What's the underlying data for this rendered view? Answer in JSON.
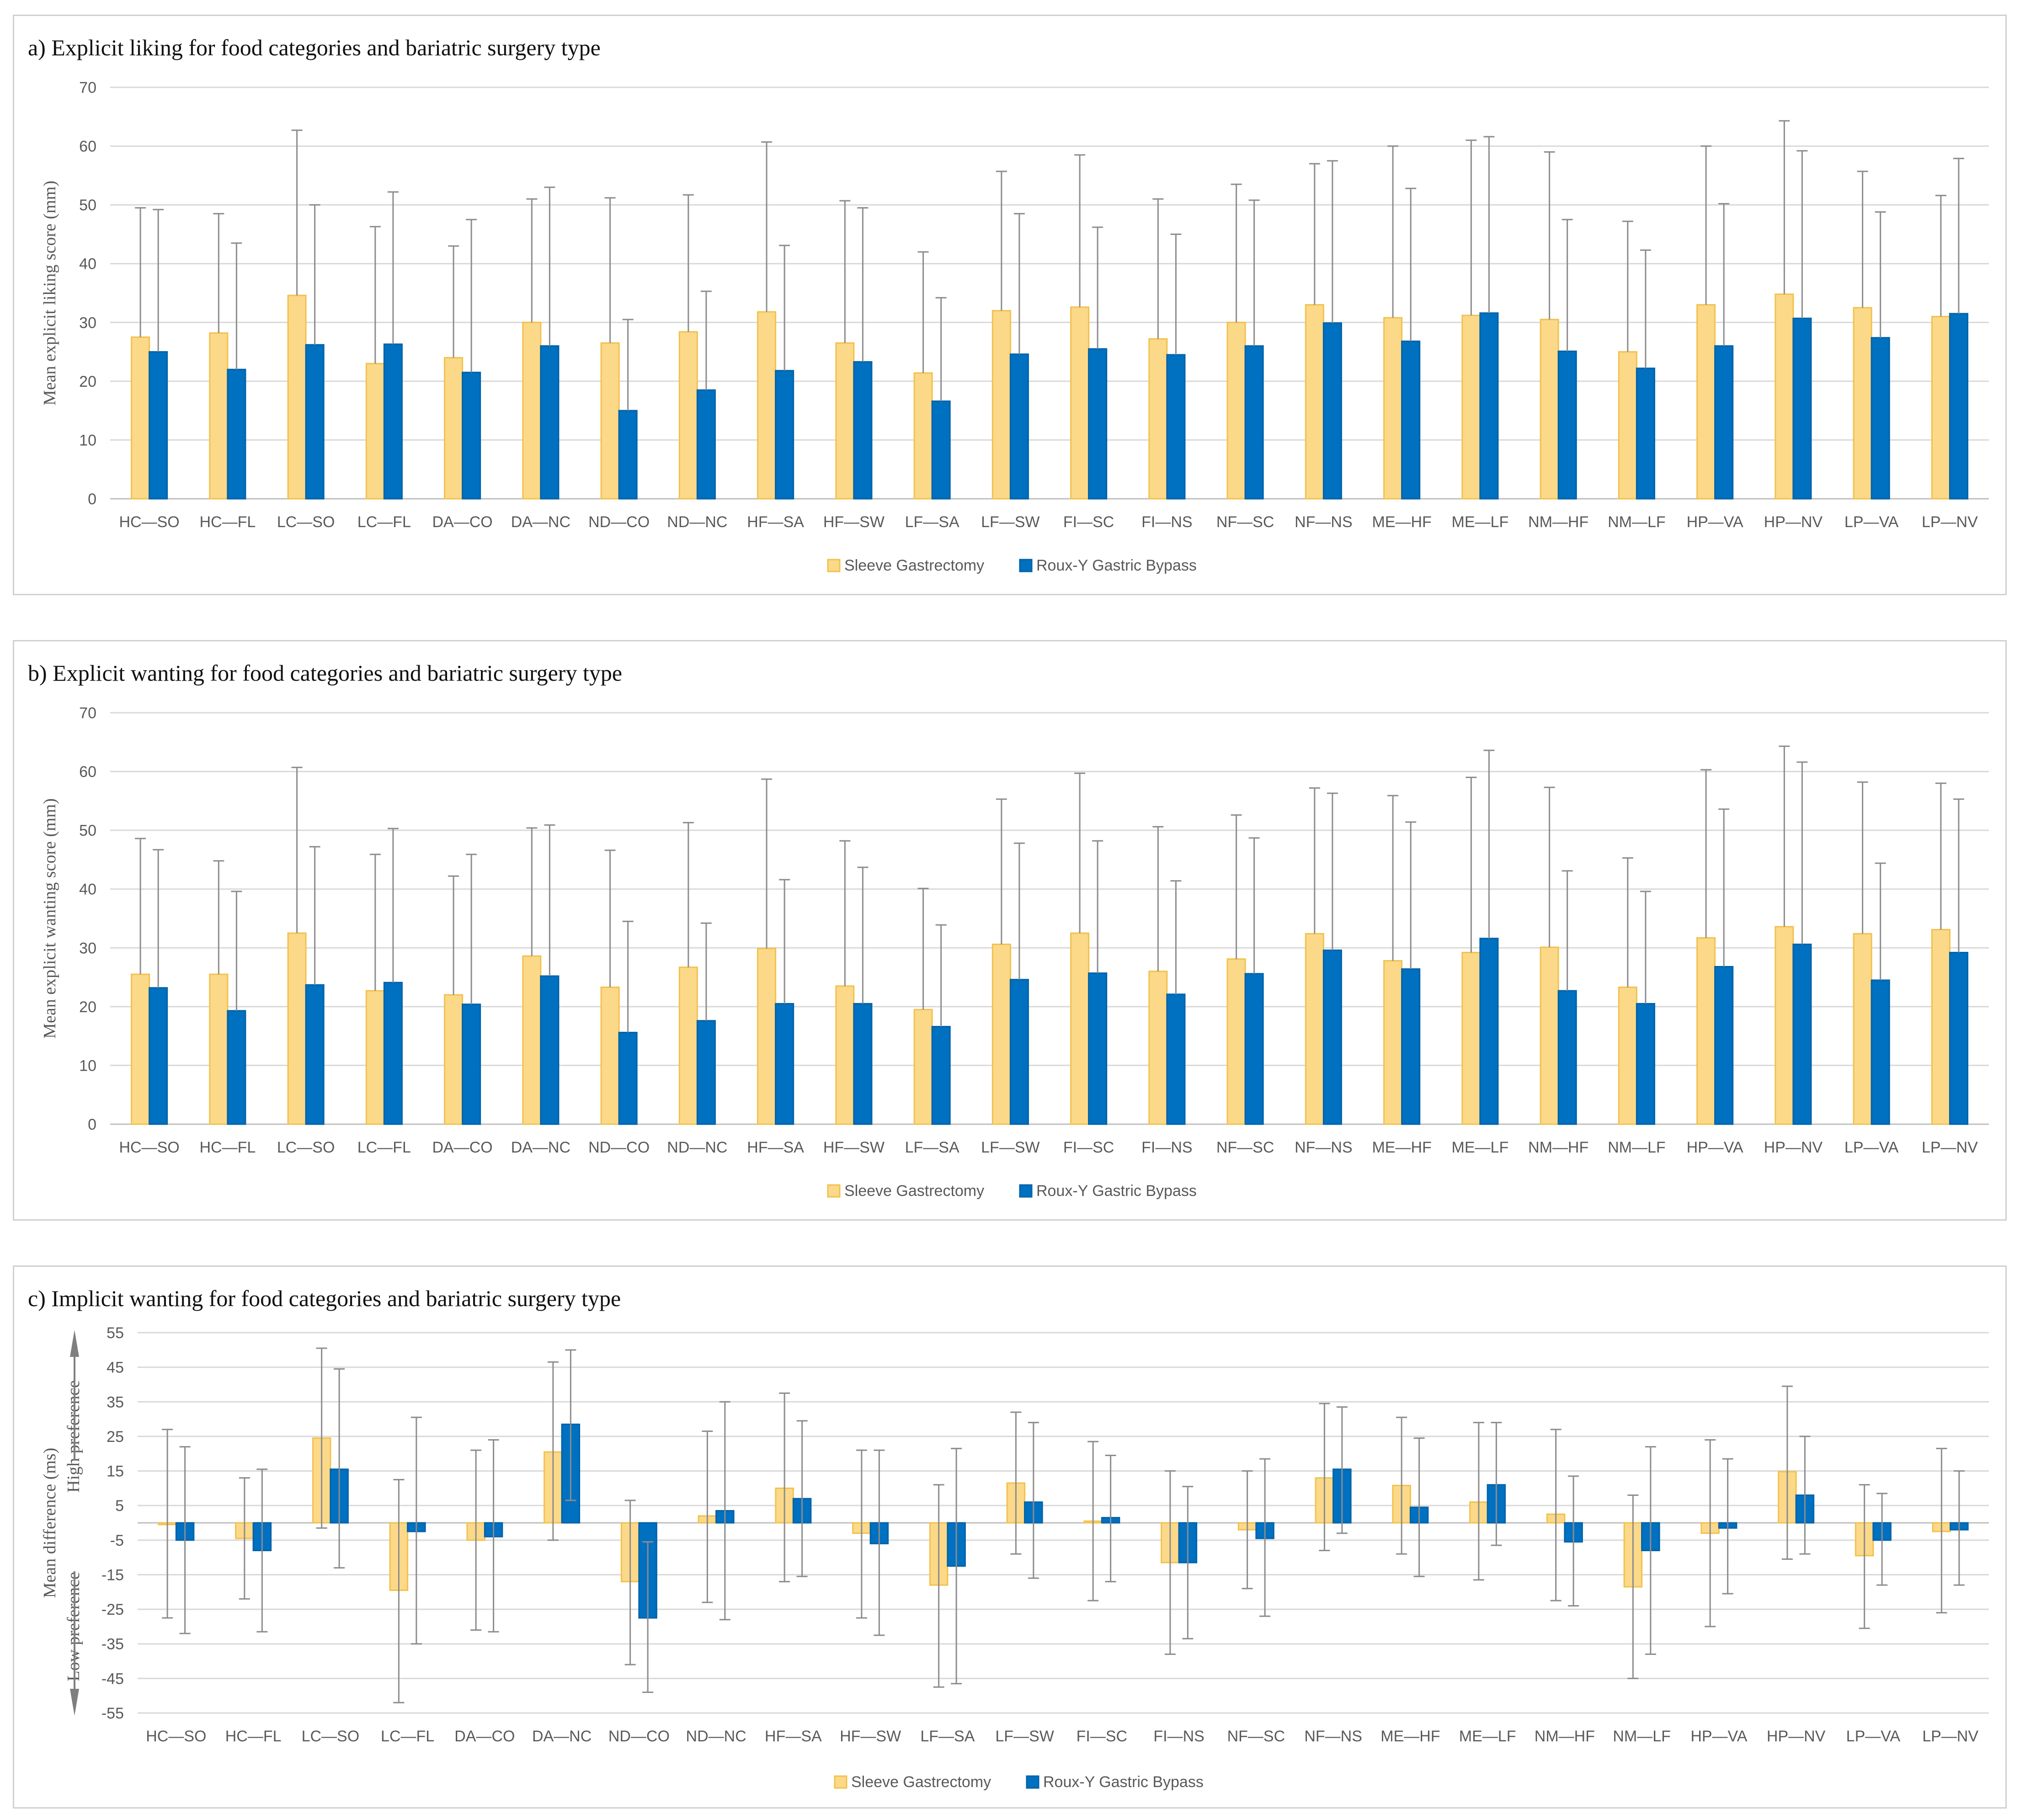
{
  "chart_data": [
    {
      "type": "bar",
      "title": "a) Explicit liking for food categories and bariatric surgery type",
      "xlabel": "",
      "ylabel": "Mean explicit liking score (mm)",
      "ylim": [
        0,
        70
      ],
      "yticks": [
        0,
        10,
        20,
        30,
        40,
        50,
        60,
        70
      ],
      "grid": true,
      "legend_position": "bottom",
      "categories": [
        "HC—SO",
        "HC—FL",
        "LC—SO",
        "LC—FL",
        "DA—CO",
        "DA—NC",
        "ND—CO",
        "ND—NC",
        "HF—SA",
        "HF—SW",
        "LF—SA",
        "LF—SW",
        "FI—SC",
        "FI—NS",
        "NF—SC",
        "NF—NS",
        "ME—HF",
        "ME—LF",
        "NM—HF",
        "NM—LF",
        "HP—VA",
        "HP—NV",
        "LP—VA",
        "LP—NV"
      ],
      "series": [
        {
          "name": "Sleeve Gastrectomy",
          "color": "#fbd989",
          "edge": "#f2c14e",
          "values": [
            27.5,
            28.2,
            34.6,
            23,
            24,
            30,
            26.5,
            28.4,
            31.8,
            26.5,
            21.4,
            32,
            32.6,
            27.2,
            30,
            33,
            30.8,
            31.2,
            30.5,
            25,
            33,
            34.8,
            32.5,
            31
          ],
          "err_top": [
            49.5,
            48.5,
            62.7,
            46.3,
            43,
            51,
            51.2,
            51.7,
            60.7,
            50.7,
            42,
            55.7,
            58.5,
            51,
            53.5,
            57,
            60,
            61,
            59,
            47.2,
            60,
            64.3,
            55.7,
            51.6
          ]
        },
        {
          "name": "Roux-Y Gastric Bypass",
          "color": "#0070c0",
          "edge": "#0062a8",
          "values": [
            25,
            22,
            26.2,
            26.3,
            21.5,
            26,
            15,
            18.5,
            21.8,
            23.3,
            16.6,
            24.6,
            25.5,
            24.5,
            26,
            29.9,
            26.8,
            31.6,
            25.1,
            22.2,
            26,
            30.7,
            27.4,
            31.5
          ],
          "err_top": [
            49.2,
            43.5,
            50,
            52.2,
            47.5,
            53,
            30.5,
            35.3,
            43.1,
            49.5,
            34.2,
            48.5,
            46.2,
            45,
            50.8,
            57.5,
            52.8,
            61.6,
            47.5,
            42.3,
            50.2,
            59.2,
            48.8,
            57.9
          ]
        }
      ]
    },
    {
      "type": "bar",
      "title": "b) Explicit wanting for food categories and bariatric surgery type",
      "xlabel": "",
      "ylabel": "Mean explicit wanting score (mm)",
      "ylim": [
        0,
        70
      ],
      "yticks": [
        0,
        10,
        20,
        30,
        40,
        50,
        60,
        70
      ],
      "grid": true,
      "legend_position": "bottom",
      "categories": [
        "HC—SO",
        "HC—FL",
        "LC—SO",
        "LC—FL",
        "DA—CO",
        "DA—NC",
        "ND—CO",
        "ND—NC",
        "HF—SA",
        "HF—SW",
        "LF—SA",
        "LF—SW",
        "FI—SC",
        "FI—NS",
        "NF—SC",
        "NF—NS",
        "ME—HF",
        "ME—LF",
        "NM—HF",
        "NM—LF",
        "HP—VA",
        "HP—NV",
        "LP—VA",
        "LP—NV"
      ],
      "series": [
        {
          "name": "Sleeve Gastrectomy",
          "color": "#fbd989",
          "edge": "#f2c14e",
          "values": [
            25.5,
            25.5,
            32.5,
            22.7,
            22,
            28.6,
            23.3,
            26.7,
            29.9,
            23.5,
            19.5,
            30.6,
            32.5,
            26,
            28.1,
            32.4,
            27.8,
            29.2,
            30.1,
            23.3,
            31.7,
            33.6,
            32.4,
            33.1
          ],
          "err_top": [
            48.6,
            44.8,
            60.7,
            45.9,
            42.2,
            50.4,
            46.6,
            51.3,
            58.7,
            48.2,
            40.1,
            55.3,
            59.7,
            50.6,
            52.6,
            57.2,
            55.9,
            59,
            57.3,
            45.3,
            60.3,
            64.3,
            58.2,
            58
          ]
        },
        {
          "name": "Roux-Y Gastric Bypass",
          "color": "#0070c0",
          "edge": "#0062a8",
          "values": [
            23.2,
            19.3,
            23.7,
            24.1,
            20.4,
            25.2,
            15.6,
            17.6,
            20.5,
            20.5,
            16.6,
            24.6,
            25.7,
            22.1,
            25.6,
            29.6,
            26.4,
            31.6,
            22.7,
            20.5,
            26.8,
            30.6,
            24.5,
            29.2
          ],
          "err_top": [
            46.7,
            39.6,
            47.2,
            50.3,
            45.9,
            50.9,
            34.5,
            34.2,
            41.6,
            43.7,
            33.9,
            47.8,
            48.2,
            41.4,
            48.7,
            56.3,
            51.4,
            63.6,
            43.1,
            39.6,
            53.6,
            61.6,
            44.4,
            55.3
          ]
        }
      ]
    },
    {
      "type": "bar",
      "title": "c) Implicit wanting for food categories and bariatric surgery type",
      "xlabel": "",
      "ylabel": "Mean difference (ms)",
      "ylabel_high": "High preference",
      "ylabel_low": "Low preference",
      "ylim": [
        -55,
        55
      ],
      "yticks": [
        -55,
        -45,
        -35,
        -25,
        -15,
        -5,
        5,
        15,
        25,
        35,
        45,
        55
      ],
      "grid": true,
      "legend_position": "bottom",
      "categories": [
        "HC—SO",
        "HC—FL",
        "LC—SO",
        "LC—FL",
        "DA—CO",
        "DA—NC",
        "ND—CO",
        "ND—NC",
        "HF—SA",
        "HF—SW",
        "LF—SA",
        "LF—SW",
        "FI—SC",
        "FI—NS",
        "NF—SC",
        "NF—NS",
        "ME—HF",
        "ME—LF",
        "NM—HF",
        "NM—LF",
        "HP—VA",
        "HP—NV",
        "LP—VA",
        "LP—NV"
      ],
      "series": [
        {
          "name": "Sleeve Gastrectomy",
          "color": "#fbd989",
          "edge": "#f2c14e",
          "values": [
            -0.5,
            -4.5,
            24.5,
            -19.5,
            -5,
            20.5,
            -17,
            2,
            10,
            -3,
            -18,
            11.5,
            0.5,
            -11.5,
            -2,
            13,
            10.8,
            6,
            2.5,
            -18.5,
            -3,
            14.8,
            -9.5,
            -2.5
          ],
          "err_low": [
            -27.5,
            -22,
            -1.5,
            -52,
            -31,
            -5,
            -41,
            -23,
            -17,
            -27.5,
            -47.5,
            -9,
            -22.5,
            -38,
            -19,
            -8,
            -9,
            -16.5,
            -22.5,
            -45,
            -30,
            -10.5,
            -30.5,
            -26
          ],
          "err_high": [
            27,
            13,
            50.5,
            12.5,
            21,
            46.5,
            6.5,
            26.5,
            37.5,
            21,
            11,
            32,
            23.5,
            15,
            15,
            34.5,
            30.5,
            29,
            27,
            8,
            24,
            39.5,
            11,
            21.5
          ]
        },
        {
          "name": "Roux-Y Gastric Bypass",
          "color": "#0070c0",
          "edge": "#0062a8",
          "values": [
            -5,
            -8,
            15.5,
            -2.5,
            -4,
            28.5,
            -27.5,
            3.5,
            7,
            -6,
            -12.5,
            6,
            1.5,
            -11.5,
            -4.5,
            15.5,
            4.5,
            11,
            -5.5,
            -8,
            -1.5,
            8,
            -5,
            -2
          ],
          "err_low": [
            -32,
            -31.5,
            -13,
            -35,
            -31.5,
            6.5,
            -49,
            -28,
            -15.5,
            -32.5,
            -46.5,
            -16,
            -17,
            -33.5,
            -27,
            -3,
            -15.5,
            -6.5,
            -24,
            -38,
            -20.5,
            -9,
            -18,
            -18
          ],
          "err_high": [
            22,
            15.5,
            44.5,
            30.5,
            24,
            50,
            -5.5,
            35,
            29.5,
            21,
            21.5,
            29,
            19.5,
            10.5,
            18.5,
            33.5,
            24.5,
            29,
            13.5,
            22,
            18.5,
            25,
            8.5,
            15
          ]
        }
      ]
    }
  ]
}
